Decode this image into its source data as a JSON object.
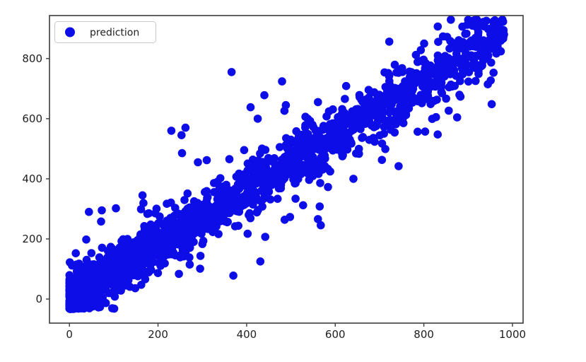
{
  "figure": {
    "background": "#ffffff",
    "plot_background": "#ffffff",
    "frame_color": "#3c3c3c",
    "tick_color": "#3c3c3c",
    "tick_label_color": "#1f1f1f"
  },
  "legend": {
    "label": "prediction",
    "marker": "circle-icon",
    "marker_color": "#0d0de8",
    "border_color": "#c9c9c9",
    "background": "#ffffff",
    "position": "upper left"
  },
  "chart_data": {
    "type": "scatter",
    "title": "",
    "xlabel": "",
    "ylabel": "",
    "grid": false,
    "legend_position": "upper left",
    "axes": {
      "xlim": [
        -45,
        1024
      ],
      "ylim": [
        -80,
        943
      ],
      "x_ticks": [
        0,
        200,
        400,
        600,
        800,
        1000
      ],
      "y_ticks": [
        0,
        200,
        400,
        600,
        800
      ]
    },
    "series": [
      {
        "name": "prediction",
        "color": "#0d0de8",
        "marker": "circle",
        "marker_radius_px": 5.8,
        "description": "dense cloud of ~2000 points along y = 0.9x, densest near origin, thinning toward x = 980; vertical noise sd ~35-55 with heavier tails",
        "x_range": [
          0,
          982
        ],
        "y_range": [
          -33,
          906
        ],
        "generator": {
          "seed": 11,
          "n": 2150,
          "x_max": 982,
          "x_skew_exponent": 1.8,
          "slope": 0.9,
          "intercept": 4,
          "noise_sd_base": 34,
          "noise_sd_per_x": 0.022,
          "tail_fraction": 0.055,
          "tail_multiplier": 2.6,
          "y_clip_min": -33,
          "y_clip_max": 930
        },
        "notable_outliers": [
          [
            366,
            755
          ],
          [
            480,
            724
          ],
          [
            440,
            678
          ],
          [
            409,
            638
          ],
          [
            425,
            600
          ],
          [
            230,
            560
          ],
          [
            253,
            545
          ],
          [
            262,
            570
          ],
          [
            290,
            455
          ],
          [
            310,
            462
          ],
          [
            44,
            290
          ],
          [
            73,
            295
          ],
          [
            105,
            302
          ],
          [
            38,
            198
          ],
          [
            165,
            345
          ],
          [
            743,
            442
          ],
          [
            713,
            499
          ],
          [
            641,
            400
          ],
          [
            565,
            308
          ],
          [
            498,
            273
          ],
          [
            561,
            266
          ],
          [
            370,
            78
          ],
          [
            431,
            125
          ],
          [
            442,
            207
          ],
          [
            295,
            101
          ],
          [
            887,
            906
          ],
          [
            971,
            901
          ],
          [
            979,
            866
          ]
        ]
      }
    ]
  }
}
